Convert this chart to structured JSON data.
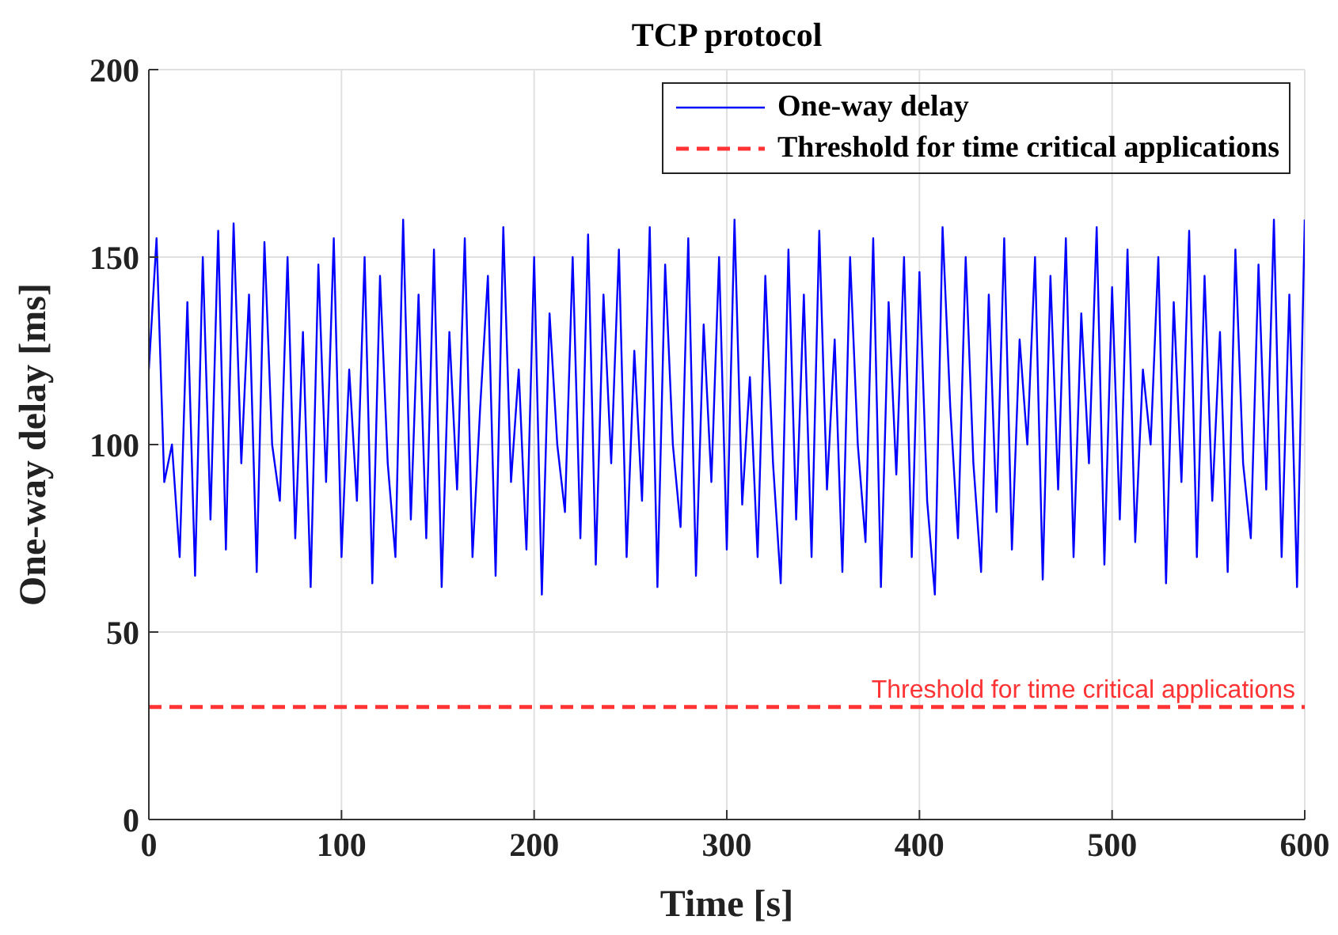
{
  "chart_data": {
    "type": "line",
    "title": "TCP protocol",
    "xlabel": "Time [s]",
    "ylabel": "One-way delay [ms]",
    "x": [
      0,
      4,
      8,
      12,
      16,
      20,
      24,
      28,
      32,
      36,
      40,
      44,
      48,
      52,
      56,
      60,
      64,
      68,
      72,
      76,
      80,
      84,
      88,
      92,
      96,
      100,
      104,
      108,
      112,
      116,
      120,
      124,
      128,
      132,
      136,
      140,
      144,
      148,
      152,
      156,
      160,
      164,
      168,
      172,
      176,
      180,
      184,
      188,
      192,
      196,
      200,
      204,
      208,
      212,
      216,
      220,
      224,
      228,
      232,
      236,
      240,
      244,
      248,
      252,
      256,
      260,
      264,
      268,
      272,
      276,
      280,
      284,
      288,
      292,
      296,
      300,
      304,
      308,
      312,
      316,
      320,
      324,
      328,
      332,
      336,
      340,
      344,
      348,
      352,
      356,
      360,
      364,
      368,
      372,
      376,
      380,
      384,
      388,
      392,
      396,
      400,
      404,
      408,
      412,
      416,
      420,
      424,
      428,
      432,
      436,
      440,
      444,
      448,
      452,
      456,
      460,
      464,
      468,
      472,
      476,
      480,
      484,
      488,
      492,
      496,
      500,
      504,
      508,
      512,
      516,
      520,
      524,
      528,
      532,
      536,
      540,
      544,
      548,
      552,
      556,
      560,
      564,
      568,
      572,
      576,
      580,
      584,
      588,
      592,
      596,
      600
    ],
    "series": [
      {
        "name": "One-way delay",
        "color": "#0000ff",
        "values": [
          120,
          155,
          90,
          100,
          70,
          138,
          65,
          150,
          80,
          157,
          72,
          159,
          95,
          140,
          66,
          154,
          100,
          85,
          150,
          75,
          130,
          62,
          148,
          90,
          155,
          70,
          120,
          85,
          150,
          63,
          145,
          95,
          70,
          160,
          80,
          140,
          75,
          152,
          62,
          130,
          88,
          155,
          70,
          110,
          145,
          65,
          158,
          90,
          120,
          72,
          150,
          60,
          135,
          100,
          82,
          150,
          75,
          156,
          68,
          140,
          95,
          152,
          70,
          125,
          85,
          158,
          62,
          148,
          100,
          78,
          155,
          65,
          132,
          90,
          150,
          72,
          160,
          84,
          118,
          70,
          145,
          95,
          63,
          152,
          80,
          140,
          70,
          157,
          88,
          128,
          66,
          150,
          100,
          74,
          155,
          62,
          138,
          92,
          150,
          70,
          146,
          85,
          60,
          158,
          110,
          75,
          150,
          95,
          66,
          140,
          82,
          155,
          72,
          128,
          100,
          150,
          64,
          145,
          88,
          155,
          70,
          135,
          95,
          158,
          68,
          142,
          80,
          152,
          74,
          120,
          100,
          150,
          63,
          138,
          90,
          157,
          70,
          145,
          85,
          130,
          66,
          152,
          95,
          75,
          148,
          88,
          160,
          70,
          140,
          62,
          160
        ]
      }
    ],
    "ref_lines": [
      {
        "axis": "y",
        "value": 30,
        "label": "Threshold for time critical applications",
        "color": "#ff3333",
        "line_style": "dashed"
      }
    ],
    "xlim": [
      0,
      600
    ],
    "xticks": [
      0,
      100,
      200,
      300,
      400,
      500,
      600
    ],
    "ylim": [
      0,
      200
    ],
    "yticks": [
      0,
      50,
      100,
      150,
      200
    ],
    "grid": true,
    "legend": "top right",
    "line_style": "solid",
    "marker": "none"
  }
}
